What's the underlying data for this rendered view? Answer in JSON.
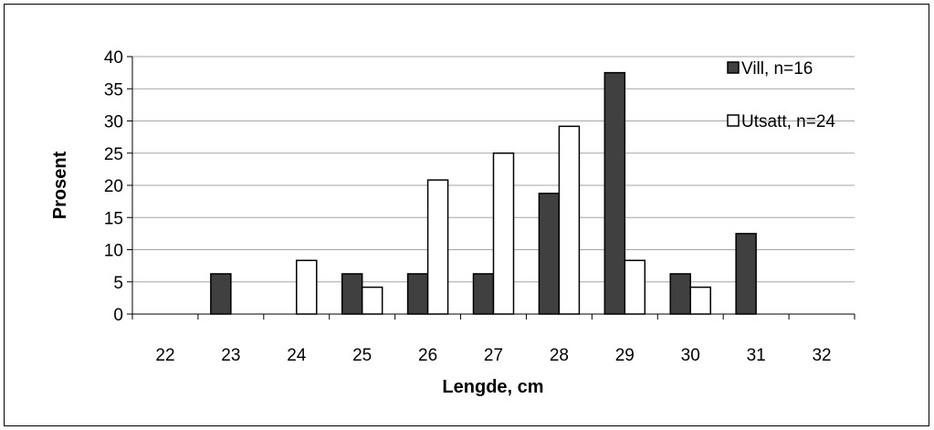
{
  "chart_data": {
    "type": "bar",
    "categories": [
      "22",
      "23",
      "24",
      "25",
      "26",
      "27",
      "28",
      "29",
      "30",
      "31",
      "32"
    ],
    "series": [
      {
        "name": "Vill, n=16",
        "values": [
          0,
          6.25,
          0,
          6.25,
          6.25,
          6.25,
          18.75,
          37.5,
          6.25,
          12.5,
          0
        ],
        "color": "#404040"
      },
      {
        "name": "Utsatt, n=24",
        "values": [
          0,
          0,
          8.33,
          4.17,
          20.83,
          25,
          29.17,
          8.33,
          4.17,
          0,
          0
        ],
        "color": "#ffffff"
      }
    ],
    "xlabel": "Lengde, cm",
    "ylabel": "Prosent",
    "ylim": [
      0,
      40
    ],
    "yticks": [
      "0",
      "5",
      "10",
      "15",
      "20",
      "25",
      "30",
      "35",
      "40"
    ],
    "grid": true,
    "legend_position": "top-right"
  }
}
